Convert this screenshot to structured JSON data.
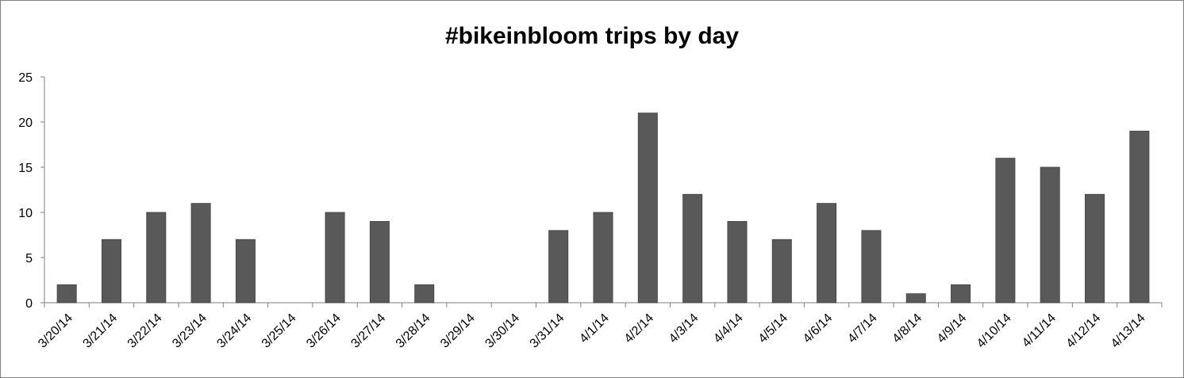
{
  "chart_data": {
    "type": "bar",
    "title": "#bikeinbloom trips by day",
    "xlabel": "",
    "ylabel": "",
    "ylim": [
      0,
      25
    ],
    "yticks": [
      0,
      5,
      10,
      15,
      20,
      25
    ],
    "grid": false,
    "legend": "none",
    "bar_color": "#595959",
    "categories": [
      "3/20/14",
      "3/21/14",
      "3/22/14",
      "3/23/14",
      "3/24/14",
      "3/25/14",
      "3/26/14",
      "3/27/14",
      "3/28/14",
      "3/29/14",
      "3/30/14",
      "3/31/14",
      "4/1/14",
      "4/2/14",
      "4/3/14",
      "4/4/14",
      "4/5/14",
      "4/6/14",
      "4/7/14",
      "4/8/14",
      "4/9/14",
      "4/10/14",
      "4/11/14",
      "4/12/14",
      "4/13/14"
    ],
    "values": [
      2,
      7,
      10,
      11,
      7,
      0,
      10,
      9,
      2,
      0,
      0,
      8,
      10,
      21,
      12,
      9,
      7,
      11,
      8,
      1,
      2,
      16,
      15,
      12,
      19
    ]
  }
}
